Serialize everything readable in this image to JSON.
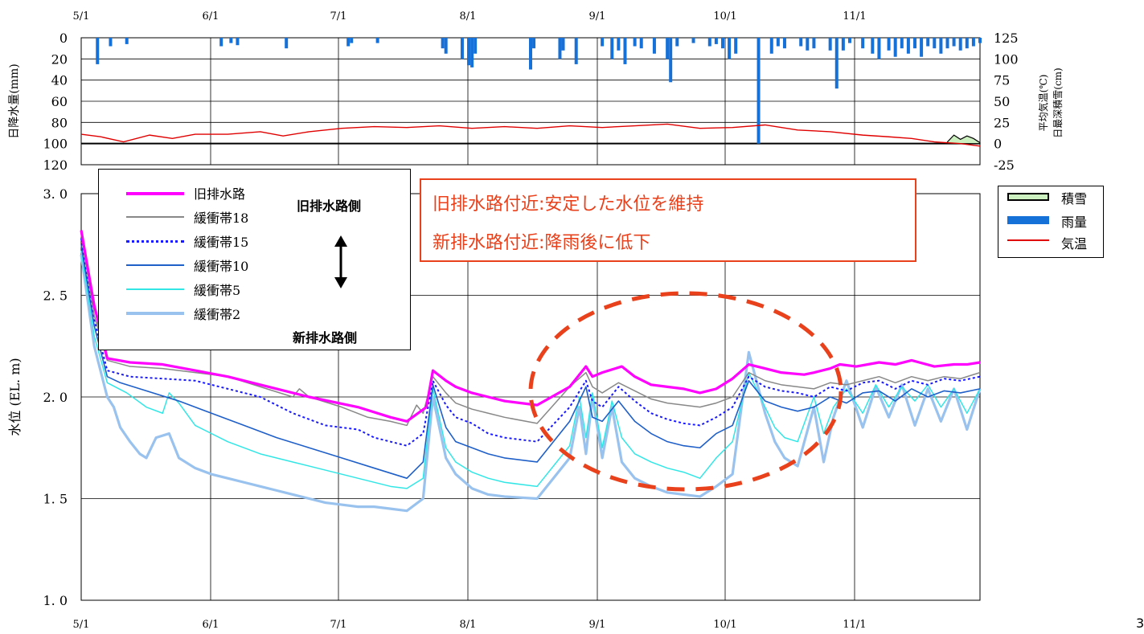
{
  "chart_data": [
    {
      "type": "bar",
      "panel": "weather",
      "x_ticks": [
        "5/1",
        "6/1",
        "7/1",
        "8/1",
        "9/1",
        "10/1",
        "11/1"
      ],
      "left_axis": {
        "label": "日降水量(mm)",
        "ticks": [
          0,
          20,
          40,
          60,
          80,
          100,
          120
        ],
        "ylim": [
          0,
          120
        ],
        "inverted": true
      },
      "right_axis": {
        "label_temp": "平均気温(℃)",
        "label_snow": "日最深積雪(cm)",
        "ticks": [
          125,
          100,
          75,
          50,
          25,
          0,
          -25
        ],
        "ylim": [
          -25,
          125
        ]
      },
      "precipitation": {
        "name": "雨量",
        "days": [
          5,
          9,
          14,
          43,
          46,
          48,
          63,
          82,
          83,
          91,
          111,
          112,
          117,
          119,
          120,
          121,
          138,
          139,
          147,
          148,
          152,
          160,
          163,
          165,
          167,
          170,
          172,
          176,
          180,
          181,
          183,
          188,
          193,
          195,
          197,
          199,
          201,
          208,
          212,
          214,
          216,
          221,
          223,
          225,
          230,
          232,
          234,
          236,
          240,
          243,
          245,
          248,
          250,
          252,
          254,
          256,
          258,
          260,
          262,
          264,
          266,
          268,
          270,
          272,
          274,
          276
        ],
        "values": [
          25,
          8,
          6,
          8,
          5,
          7,
          10,
          8,
          5,
          5,
          10,
          15,
          20,
          26,
          28,
          15,
          30,
          10,
          20,
          12,
          25,
          8,
          20,
          12,
          25,
          8,
          10,
          15,
          20,
          42,
          8,
          5,
          8,
          6,
          10,
          20,
          15,
          100,
          15,
          8,
          10,
          8,
          12,
          10,
          12,
          48,
          12,
          5,
          10,
          15,
          20,
          12,
          18,
          10,
          15,
          10,
          18,
          8,
          10,
          15,
          10,
          8,
          12,
          10,
          8,
          5
        ]
      },
      "temperature": {
        "name": "気温",
        "days": [
          0,
          6,
          13,
          21,
          28,
          35,
          45,
          55,
          62,
          70,
          80,
          90,
          100,
          110,
          120,
          130,
          140,
          150,
          160,
          170,
          180,
          190,
          200,
          210,
          220,
          230,
          240,
          248,
          255,
          262,
          270,
          276
        ],
        "values": [
          11,
          8,
          2,
          10,
          6,
          11,
          11,
          14,
          9,
          14,
          18,
          20,
          19,
          21,
          18,
          20,
          18,
          21,
          19,
          21,
          23,
          18,
          19,
          22,
          16,
          14,
          10,
          8,
          6,
          2,
          0,
          -3
        ]
      },
      "snow": {
        "name": "積雪",
        "days": [
          266,
          268,
          270,
          272,
          274,
          276
        ],
        "values": [
          2,
          10,
          5,
          9,
          6,
          1
        ]
      }
    },
    {
      "type": "line",
      "panel": "water_level",
      "ylabel": "水位 (EL. m)",
      "x_ticks": [
        "5/1",
        "6/1",
        "7/1",
        "8/1",
        "9/1",
        "10/1",
        "11/1"
      ],
      "y_ticks": [
        "1. 0",
        "1. 5",
        "2. 0",
        "2. 5",
        "3. 0"
      ],
      "ylim": [
        1.0,
        3.0
      ],
      "series": [
        {
          "name": "旧排水路",
          "color": "#ff00ff",
          "x": [
            0,
            4,
            8,
            15,
            25,
            35,
            45,
            55,
            70,
            85,
            95,
            100,
            106,
            108,
            112,
            115,
            120,
            125,
            130,
            140,
            150,
            155,
            157,
            160,
            166,
            170,
            175,
            180,
            185,
            190,
            195,
            200,
            205,
            210,
            215,
            222,
            225,
            230,
            233,
            238,
            245,
            250,
            255,
            262,
            268,
            272,
            276
          ],
          "values": [
            2.82,
            2.45,
            2.19,
            2.17,
            2.16,
            2.13,
            2.1,
            2.06,
            2.0,
            1.95,
            1.9,
            1.88,
            1.95,
            2.13,
            2.08,
            2.05,
            2.02,
            2.0,
            1.98,
            1.96,
            2.05,
            2.15,
            2.1,
            2.12,
            2.15,
            2.1,
            2.06,
            2.05,
            2.04,
            2.02,
            2.04,
            2.09,
            2.16,
            2.14,
            2.12,
            2.11,
            2.12,
            2.14,
            2.16,
            2.15,
            2.17,
            2.16,
            2.18,
            2.15,
            2.16,
            2.16,
            2.17
          ]
        },
        {
          "name": "緩衝帯18",
          "color": "#888888",
          "x": [
            0,
            4,
            8,
            15,
            25,
            35,
            45,
            55,
            65,
            67,
            70,
            80,
            88,
            95,
            100,
            103,
            105,
            108,
            112,
            115,
            120,
            125,
            130,
            140,
            150,
            155,
            157,
            160,
            165,
            170,
            175,
            180,
            185,
            190,
            195,
            200,
            205,
            210,
            215,
            220,
            225,
            230,
            235,
            240,
            245,
            250,
            255,
            260,
            265,
            270,
            276
          ],
          "values": [
            2.8,
            2.4,
            2.18,
            2.15,
            2.14,
            2.12,
            2.1,
            2.05,
            2.0,
            2.04,
            2.0,
            1.95,
            1.9,
            1.88,
            1.86,
            1.96,
            1.92,
            2.1,
            2.02,
            1.97,
            1.94,
            1.92,
            1.9,
            1.87,
            2.05,
            2.12,
            2.05,
            2.02,
            2.07,
            2.03,
            1.99,
            1.97,
            1.96,
            1.95,
            1.97,
            2.0,
            2.12,
            2.08,
            2.06,
            2.05,
            2.04,
            2.07,
            2.06,
            2.08,
            2.1,
            2.07,
            2.1,
            2.08,
            2.1,
            2.09,
            2.12
          ]
        },
        {
          "name": "緩衝帯15",
          "color": "#1a1aff",
          "dash": true,
          "x": [
            0,
            4,
            8,
            15,
            25,
            35,
            45,
            55,
            65,
            75,
            85,
            90,
            95,
            100,
            105,
            108,
            112,
            115,
            120,
            125,
            130,
            140,
            150,
            155,
            157,
            160,
            165,
            170,
            175,
            180,
            185,
            190,
            195,
            200,
            205,
            210,
            215,
            220,
            225,
            230,
            235,
            240,
            245,
            250,
            255,
            260,
            265,
            270,
            276
          ],
          "values": [
            2.78,
            2.38,
            2.13,
            2.1,
            2.09,
            2.08,
            2.04,
            2.0,
            1.92,
            1.86,
            1.84,
            1.8,
            1.78,
            1.76,
            1.82,
            2.08,
            1.96,
            1.9,
            1.87,
            1.82,
            1.8,
            1.78,
            1.95,
            2.08,
            1.98,
            1.95,
            2.05,
            1.98,
            1.92,
            1.89,
            1.87,
            1.86,
            1.9,
            1.95,
            2.1,
            2.05,
            2.03,
            2.02,
            2.0,
            2.05,
            2.03,
            2.07,
            2.08,
            2.04,
            2.08,
            2.06,
            2.09,
            2.08,
            2.1
          ]
        },
        {
          "name": "緩衝帯10",
          "color": "#1f5fc8",
          "x": [
            0,
            4,
            8,
            12,
            20,
            30,
            40,
            50,
            60,
            70,
            80,
            90,
            100,
            105,
            108,
            112,
            115,
            120,
            125,
            130,
            140,
            150,
            155,
            157,
            160,
            165,
            170,
            175,
            180,
            185,
            190,
            195,
            200,
            205,
            210,
            215,
            220,
            225,
            230,
            235,
            240,
            245,
            250,
            255,
            260,
            265,
            270,
            276
          ],
          "values": [
            2.75,
            2.35,
            2.1,
            2.07,
            2.03,
            1.98,
            1.92,
            1.86,
            1.8,
            1.75,
            1.7,
            1.65,
            1.6,
            1.68,
            2.06,
            1.85,
            1.78,
            1.75,
            1.72,
            1.7,
            1.68,
            1.88,
            2.05,
            1.9,
            1.88,
            1.98,
            1.88,
            1.82,
            1.78,
            1.76,
            1.75,
            1.82,
            1.86,
            2.08,
            1.98,
            1.95,
            1.93,
            1.95,
            2.0,
            1.97,
            2.02,
            2.03,
            1.98,
            2.04,
            2.0,
            2.03,
            2.02,
            2.04
          ]
        },
        {
          "name": "緩衝帯5",
          "color": "#33e6e6",
          "x": [
            0,
            4,
            8,
            14,
            20,
            25,
            27,
            30,
            35,
            45,
            55,
            65,
            75,
            85,
            95,
            100,
            105,
            108,
            112,
            115,
            120,
            125,
            130,
            140,
            150,
            153,
            155,
            157,
            160,
            163,
            166,
            170,
            175,
            180,
            185,
            190,
            195,
            200,
            205,
            210,
            213,
            216,
            220,
            225,
            228,
            231,
            235,
            240,
            244,
            248,
            252,
            256,
            260,
            264,
            268,
            272,
            276
          ],
          "values": [
            2.72,
            2.3,
            2.07,
            2.02,
            1.95,
            1.92,
            2.02,
            1.97,
            1.86,
            1.78,
            1.72,
            1.68,
            1.64,
            1.6,
            1.56,
            1.55,
            1.6,
            2.04,
            1.75,
            1.68,
            1.63,
            1.6,
            1.58,
            1.56,
            1.76,
            2.0,
            1.8,
            2.02,
            1.75,
            1.98,
            1.8,
            1.72,
            1.68,
            1.65,
            1.63,
            1.6,
            1.7,
            1.78,
            2.12,
            1.95,
            1.85,
            1.8,
            1.78,
            2.0,
            1.82,
            1.95,
            2.04,
            1.92,
            2.06,
            1.95,
            2.05,
            1.98,
            2.06,
            1.95,
            2.04,
            1.92,
            2.04
          ]
        },
        {
          "name": "緩衝帯2",
          "color": "#99c2ee",
          "x": [
            0,
            4,
            8,
            10,
            12,
            15,
            18,
            20,
            23,
            27,
            30,
            35,
            40,
            45,
            50,
            55,
            60,
            65,
            70,
            75,
            80,
            85,
            90,
            95,
            100,
            105,
            108,
            112,
            115,
            120,
            125,
            130,
            140,
            150,
            153,
            155,
            157,
            160,
            163,
            166,
            170,
            175,
            180,
            185,
            190,
            195,
            200,
            205,
            210,
            213,
            216,
            220,
            225,
            228,
            231,
            235,
            240,
            244,
            248,
            252,
            256,
            260,
            264,
            268,
            272,
            276
          ],
          "values": [
            2.7,
            2.25,
            2.0,
            1.95,
            1.85,
            1.78,
            1.72,
            1.7,
            1.8,
            1.82,
            1.7,
            1.65,
            1.62,
            1.6,
            1.58,
            1.56,
            1.54,
            1.52,
            1.5,
            1.48,
            1.47,
            1.46,
            1.46,
            1.45,
            1.44,
            1.5,
            2.0,
            1.7,
            1.62,
            1.55,
            1.52,
            1.51,
            1.5,
            1.7,
            1.95,
            1.72,
            2.0,
            1.7,
            1.95,
            1.68,
            1.6,
            1.56,
            1.53,
            1.52,
            1.51,
            1.56,
            1.62,
            2.22,
            1.92,
            1.78,
            1.7,
            1.66,
            1.95,
            1.68,
            1.9,
            2.08,
            1.85,
            2.05,
            1.9,
            2.06,
            1.86,
            2.04,
            1.88,
            2.04,
            1.84,
            2.04
          ]
        }
      ]
    }
  ],
  "legend_left": {
    "items": [
      "旧排水路",
      "緩衝帯18",
      "緩衝帯15",
      "緩衝帯10",
      "緩衝帯5",
      "緩衝帯2"
    ],
    "top_label": "旧排水路側",
    "bottom_label": "新排水路側"
  },
  "callout": {
    "line1": "旧排水路付近:安定した水位を維持",
    "line2": "新排水路付近:降雨後に低下",
    "color": "#e8411c"
  },
  "legend_right": {
    "snow": "積雪",
    "rain": "雨量",
    "temp": "気温"
  },
  "page_number": "3"
}
